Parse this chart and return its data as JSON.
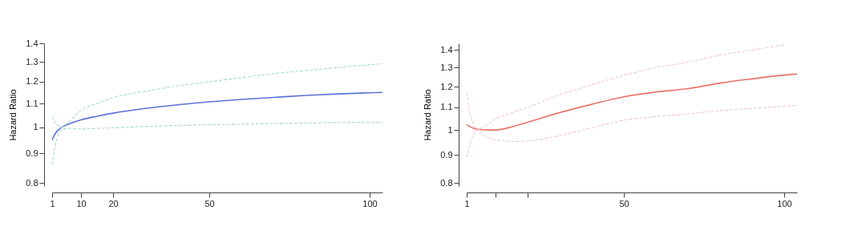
{
  "chart_data": [
    {
      "type": "line",
      "ylabel": "Hazard Ratio",
      "log": "y",
      "grid": false,
      "xlim": [
        1,
        104
      ],
      "xticks": [
        1,
        10,
        20,
        50,
        100
      ],
      "ylim": [
        0.79,
        1.4
      ],
      "yticks": [
        0.8,
        0.9,
        1,
        1.1,
        1.2,
        1.3,
        1.4
      ],
      "series": [
        {
          "color": "#5b73d6",
          "line_style": "solid",
          "x": [
            1,
            2,
            3,
            4,
            6,
            10,
            15,
            20,
            30,
            40,
            50,
            60,
            70,
            80,
            90,
            100,
            104
          ],
          "values": [
            0.95,
            0.975,
            0.99,
            1.0,
            1.012,
            1.03,
            1.045,
            1.058,
            1.078,
            1.094,
            1.107,
            1.118,
            1.127,
            1.136,
            1.143,
            1.148,
            1.15
          ]
        },
        {
          "color": "#a8dcc8",
          "line_style": "dashed",
          "x": [
            1,
            2,
            3,
            4,
            6,
            10,
            15,
            20,
            30,
            40,
            50,
            60,
            70,
            80,
            90,
            100,
            104
          ],
          "values": [
            1.045,
            1.02,
            1.005,
            1.0,
            1.02,
            1.07,
            1.1,
            1.126,
            1.155,
            1.18,
            1.2,
            1.22,
            1.24,
            1.255,
            1.27,
            1.285,
            1.29
          ]
        },
        {
          "color": "#a8dcc8",
          "line_style": "dashed",
          "x": [
            1,
            2,
            3,
            4,
            6,
            10,
            15,
            20,
            30,
            40,
            50,
            60,
            70,
            80,
            90,
            100,
            104
          ],
          "values": [
            0.86,
            0.93,
            0.97,
            0.99,
            0.995,
            0.993,
            0.995,
            0.998,
            1.003,
            1.007,
            1.01,
            1.012,
            1.015,
            1.017,
            1.019,
            1.02,
            1.02
          ]
        }
      ]
    },
    {
      "type": "line",
      "ylabel": "Hazard Ratio",
      "log": "y",
      "grid": false,
      "xlim": [
        1,
        104
      ],
      "xticks": [
        1,
        {
          "value": 10,
          "label": null
        },
        {
          "value": 20,
          "label": null
        },
        50,
        100
      ],
      "ylim": [
        0.79,
        1.44
      ],
      "yticks": [
        0.8,
        0.9,
        1,
        1.1,
        1.2,
        1.3,
        1.4
      ],
      "series": [
        {
          "color": "#e8736a",
          "line_style": "solid",
          "x": [
            1,
            3,
            5,
            8,
            10,
            15,
            20,
            30,
            40,
            50,
            60,
            70,
            80,
            90,
            100,
            104
          ],
          "values": [
            1.022,
            1.008,
            1.002,
            1.0,
            1.0,
            1.013,
            1.033,
            1.076,
            1.114,
            1.15,
            1.173,
            1.19,
            1.218,
            1.24,
            1.26,
            1.265
          ]
        },
        {
          "color": "#f4c8c8",
          "line_style": "dashed",
          "x": [
            1,
            2,
            3,
            4,
            6,
            10,
            15,
            20,
            30,
            40,
            50,
            60,
            70,
            80,
            90,
            100
          ],
          "values": [
            1.17,
            1.08,
            1.03,
            1.0,
            1.01,
            1.047,
            1.075,
            1.1,
            1.16,
            1.21,
            1.258,
            1.3,
            1.33,
            1.37,
            1.4,
            1.43
          ]
        },
        {
          "color": "#f4c8c8",
          "line_style": "dashed",
          "x": [
            1,
            2,
            3,
            4,
            6,
            10,
            15,
            20,
            30,
            40,
            50,
            60,
            70,
            80,
            90,
            100,
            104
          ],
          "values": [
            0.89,
            0.94,
            0.975,
            1.0,
            0.98,
            0.96,
            0.953,
            0.955,
            0.977,
            1.01,
            1.042,
            1.058,
            1.07,
            1.085,
            1.095,
            1.105,
            1.11
          ]
        }
      ]
    }
  ]
}
